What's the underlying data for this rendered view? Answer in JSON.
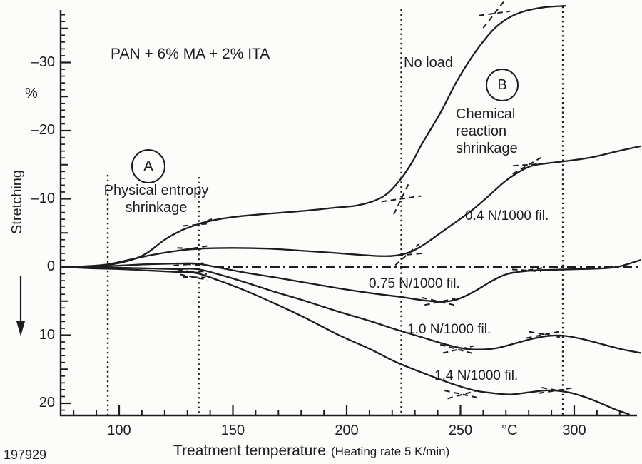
{
  "figure": {
    "corner_id": "197929",
    "title": "PAN + 6% MA + 2% ITA",
    "y_axis_label": "Stretching",
    "y_axis_unit": "%",
    "x_axis_label": "Treatment temperature",
    "x_axis_note": "(Heating rate 5 K/min)",
    "x_axis_unit": "°C"
  },
  "annotations": {
    "region_a": {
      "letter": "A",
      "caption": "Physical entropy\nshrinkage"
    },
    "region_b": {
      "letter": "B",
      "caption": "Chemical\nreaction\nshrinkage"
    }
  },
  "chart_data": {
    "type": "line",
    "title": "PAN + 6% MA + 2% ITA",
    "xlabel": "Treatment temperature (°C), heating rate 5 K/min",
    "ylabel": "Stretching (%), negative values = shrinkage (y-axis inverted)",
    "xlim": [
      74,
      330
    ],
    "ylim": [
      -37.7,
      21.8
    ],
    "y_inverted": true,
    "grid": false,
    "x_ticks": [
      100,
      150,
      200,
      250,
      300
    ],
    "x_minor_step": 10,
    "y_ticks": [
      -30,
      -20,
      -10,
      0,
      10,
      20
    ],
    "y_minor_step": 1,
    "guide_temperatures": [
      95,
      135,
      224,
      295
    ],
    "zero_line": {
      "style": "dash-dot",
      "from_t": 142,
      "to_t": 329,
      "value": 0
    },
    "series": [
      {
        "key": "no_load",
        "label": "No load",
        "points": [
          [
            76,
            0
          ],
          [
            85,
            -0.1
          ],
          [
            95,
            -0.3
          ],
          [
            105,
            -1.0
          ],
          [
            112,
            -2.0
          ],
          [
            120,
            -4.0
          ],
          [
            127,
            -5.3
          ],
          [
            134,
            -6.2
          ],
          [
            142,
            -6.9
          ],
          [
            152,
            -7.4
          ],
          [
            165,
            -7.8
          ],
          [
            180,
            -8.2
          ],
          [
            195,
            -8.7
          ],
          [
            204,
            -9.0
          ],
          [
            212,
            -9.7
          ],
          [
            218,
            -10.8
          ],
          [
            224,
            -13.0
          ],
          [
            229,
            -15.5
          ],
          [
            233,
            -18.0
          ],
          [
            241,
            -22.5
          ],
          [
            248,
            -27.0
          ],
          [
            255,
            -30.8
          ],
          [
            261,
            -33.5
          ],
          [
            266,
            -35.3
          ],
          [
            272,
            -36.7
          ],
          [
            279,
            -37.6
          ],
          [
            287,
            -38.1
          ],
          [
            296,
            -38.3
          ]
        ]
      },
      {
        "key": "0.4N",
        "label": "0.4 N/1000 fil.",
        "points": [
          [
            76,
            0
          ],
          [
            85,
            -0.1
          ],
          [
            95,
            -0.4
          ],
          [
            105,
            -1.1
          ],
          [
            115,
            -1.8
          ],
          [
            126,
            -2.4
          ],
          [
            136,
            -2.7
          ],
          [
            150,
            -2.8
          ],
          [
            165,
            -2.7
          ],
          [
            180,
            -2.4
          ],
          [
            193,
            -2.1
          ],
          [
            205,
            -1.8
          ],
          [
            215,
            -1.6
          ],
          [
            222,
            -1.7
          ],
          [
            228,
            -2.2
          ],
          [
            234,
            -3.3
          ],
          [
            240,
            -4.7
          ],
          [
            248,
            -6.6
          ],
          [
            255,
            -8.3
          ],
          [
            262,
            -10.3
          ],
          [
            269,
            -12.4
          ],
          [
            275,
            -13.8
          ],
          [
            281,
            -14.8
          ],
          [
            288,
            -15.2
          ],
          [
            298,
            -15.6
          ],
          [
            308,
            -16.1
          ],
          [
            318,
            -16.9
          ],
          [
            329,
            -17.7
          ]
        ]
      },
      {
        "key": "0.75N",
        "label": "0.75 N/1000 fil.",
        "points": [
          [
            76,
            0
          ],
          [
            88,
            0.0
          ],
          [
            100,
            -0.2
          ],
          [
            112,
            -0.4
          ],
          [
            124,
            -0.5
          ],
          [
            134,
            -0.5
          ],
          [
            144,
            0.1
          ],
          [
            155,
            0.8
          ],
          [
            168,
            1.5
          ],
          [
            182,
            2.3
          ],
          [
            196,
            3.1
          ],
          [
            210,
            3.8
          ],
          [
            224,
            4.4
          ],
          [
            234,
            4.9
          ],
          [
            242,
            5.1
          ],
          [
            249,
            4.7
          ],
          [
            256,
            3.6
          ],
          [
            263,
            2.2
          ],
          [
            269,
            1.2
          ],
          [
            274,
            0.8
          ],
          [
            282,
            0.5
          ],
          [
            292,
            0.4
          ],
          [
            303,
            0.3
          ],
          [
            313,
            0.2
          ],
          [
            320,
            -0.1
          ],
          [
            329,
            -1.0
          ]
        ]
      },
      {
        "key": "1.0N",
        "label": "1.0 N/1000 fil.",
        "points": [
          [
            76,
            0
          ],
          [
            88,
            0.1
          ],
          [
            100,
            0.1
          ],
          [
            112,
            0.2
          ],
          [
            124,
            0.3
          ],
          [
            134,
            0.3
          ],
          [
            144,
            1.1
          ],
          [
            155,
            2.2
          ],
          [
            168,
            3.6
          ],
          [
            182,
            5.0
          ],
          [
            196,
            6.5
          ],
          [
            210,
            7.9
          ],
          [
            222,
            9.2
          ],
          [
            234,
            10.4
          ],
          [
            244,
            11.4
          ],
          [
            252,
            12.0
          ],
          [
            259,
            12.1
          ],
          [
            266,
            11.9
          ],
          [
            274,
            11.2
          ],
          [
            282,
            10.5
          ],
          [
            289,
            10.1
          ],
          [
            296,
            10.1
          ],
          [
            304,
            10.6
          ],
          [
            312,
            11.3
          ],
          [
            320,
            12.0
          ],
          [
            329,
            12.6
          ]
        ]
      },
      {
        "key": "1.4N",
        "label": "1.4 N/1000 fil.",
        "points": [
          [
            76,
            0
          ],
          [
            88,
            0.2
          ],
          [
            100,
            0.3
          ],
          [
            112,
            0.5
          ],
          [
            124,
            0.7
          ],
          [
            134,
            0.9
          ],
          [
            144,
            2.0
          ],
          [
            155,
            3.4
          ],
          [
            168,
            5.3
          ],
          [
            182,
            7.5
          ],
          [
            196,
            9.9
          ],
          [
            210,
            12.0
          ],
          [
            222,
            14.0
          ],
          [
            234,
            15.6
          ],
          [
            246,
            17.1
          ],
          [
            256,
            18.1
          ],
          [
            264,
            18.5
          ],
          [
            272,
            18.7
          ],
          [
            280,
            18.4
          ],
          [
            288,
            18.1
          ],
          [
            296,
            18.3
          ],
          [
            304,
            19.0
          ],
          [
            311,
            19.9
          ],
          [
            318,
            20.9
          ],
          [
            324,
            21.6
          ]
        ]
      }
    ],
    "tangent_marks": [
      {
        "t": 134,
        "v": -6.2,
        "a1": -20,
        "a2": -5,
        "len": 46
      },
      {
        "t": 131.5,
        "v": -2.7,
        "a1": -9,
        "a2": 3,
        "len": 46
      },
      {
        "t": 130.5,
        "v": -0.4,
        "a1": -5,
        "a2": 5,
        "len": 42
      },
      {
        "t": 132,
        "v": 0.7,
        "a1": 9,
        "a2": -2,
        "len": 42
      },
      {
        "t": 133,
        "v": 1.5,
        "a1": 11,
        "a2": 1,
        "len": 40
      },
      {
        "t": 224,
        "v": -10,
        "a1": -8,
        "a2": -64,
        "len": 56
      },
      {
        "t": 226.5,
        "v": -1.8,
        "a1": -5,
        "a2": -42,
        "len": 52
      },
      {
        "t": 265,
        "v": -37.2,
        "a1": -52,
        "a2": -8,
        "len": 52
      },
      {
        "t": 280,
        "v": -15,
        "a1": -30,
        "a2": -4,
        "len": 52
      },
      {
        "t": 241,
        "v": 5.1,
        "a1": 13,
        "a2": -12,
        "len": 52
      },
      {
        "t": 279,
        "v": 0.5,
        "a1": -9,
        "a2": 4,
        "len": 48
      },
      {
        "t": 249,
        "v": 12.1,
        "a1": 15,
        "a2": -13,
        "len": 52
      },
      {
        "t": 287,
        "v": 9.9,
        "a1": -11,
        "a2": 10,
        "len": 52
      },
      {
        "t": 251,
        "v": 18.7,
        "a1": 12,
        "a2": -15,
        "len": 52
      },
      {
        "t": 292.5,
        "v": 18.1,
        "a1": -9,
        "a2": 10,
        "len": 52
      }
    ]
  }
}
